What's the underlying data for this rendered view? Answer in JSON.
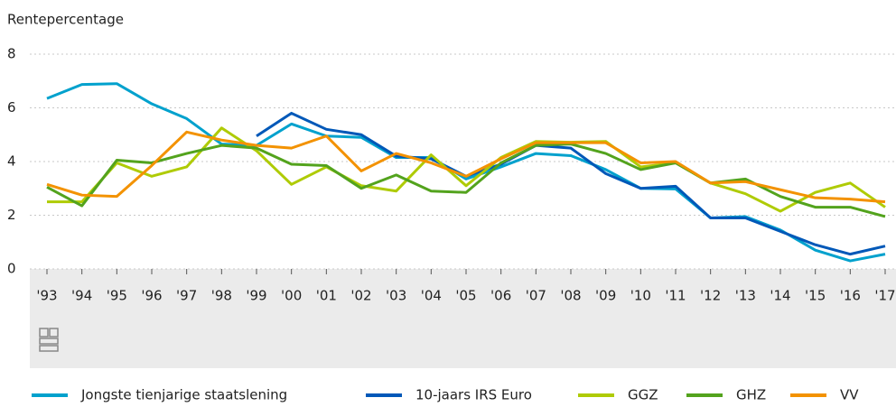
{
  "chart_data": {
    "type": "line",
    "y_label": "Rentepercentage",
    "categories": [
      "'93",
      "'94",
      "'95",
      "'96",
      "'97",
      "'98",
      "'99",
      "'00",
      "'01",
      "'02",
      "'03",
      "'04",
      "'05",
      "'06",
      "'07",
      "'08",
      "'09",
      "'10",
      "'11",
      "'12",
      "'13",
      "'14",
      "'15",
      "'16",
      "'17"
    ],
    "ylim": [
      0,
      8
    ],
    "yticks": [
      0,
      2,
      4,
      6,
      8
    ],
    "grid": true,
    "series": [
      {
        "name": "Jongste tienjarige staatslening",
        "color": "#00a1cd",
        "values": [
          6.35,
          6.87,
          6.9,
          6.15,
          5.6,
          4.65,
          4.6,
          5.4,
          4.95,
          4.9,
          4.15,
          4.15,
          3.35,
          3.8,
          4.3,
          4.22,
          3.7,
          3.0,
          2.98,
          1.9,
          1.95,
          1.45,
          0.7,
          0.3,
          0.55
        ]
      },
      {
        "name": "10-jaars IRS Euro",
        "color": "#0058b8",
        "values": [
          null,
          null,
          null,
          null,
          null,
          null,
          4.95,
          5.8,
          5.2,
          5.0,
          4.2,
          4.1,
          3.45,
          3.9,
          4.6,
          4.5,
          3.55,
          3.0,
          3.08,
          1.9,
          1.9,
          1.4,
          0.9,
          0.55,
          0.85
        ]
      },
      {
        "name": "GGZ",
        "color": "#afcb05",
        "values": [
          2.5,
          2.5,
          3.95,
          3.45,
          3.8,
          5.25,
          4.4,
          3.15,
          3.8,
          3.1,
          2.9,
          4.25,
          3.1,
          4.15,
          4.75,
          4.72,
          4.75,
          3.8,
          3.95,
          3.2,
          2.8,
          2.15,
          2.85,
          3.2,
          2.3
        ]
      },
      {
        "name": "GHZ",
        "color": "#53a31d",
        "values": [
          3.05,
          2.35,
          4.05,
          3.95,
          4.3,
          4.6,
          4.5,
          3.9,
          3.85,
          3.0,
          3.5,
          2.9,
          2.85,
          3.95,
          4.6,
          4.65,
          4.3,
          3.7,
          3.95,
          3.2,
          3.35,
          2.7,
          2.3,
          2.3,
          1.95
        ]
      },
      {
        "name": "VV",
        "color": "#f39200",
        "values": [
          3.15,
          2.75,
          2.7,
          3.85,
          5.1,
          4.8,
          4.6,
          4.5,
          4.95,
          3.65,
          4.3,
          3.95,
          3.45,
          4.1,
          4.7,
          4.7,
          4.7,
          3.95,
          4.0,
          3.2,
          3.25,
          2.95,
          2.65,
          2.6,
          2.5
        ]
      }
    ]
  }
}
